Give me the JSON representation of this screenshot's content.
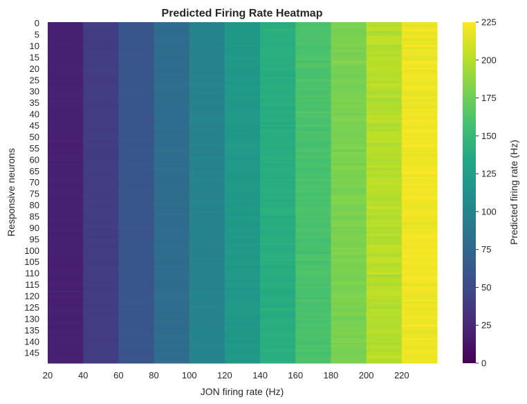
{
  "chart_data": {
    "type": "heatmap",
    "title": "Predicted Firing Rate Heatmap",
    "xlabel": "JON firing rate (Hz)",
    "ylabel": "Responsive neurons",
    "colorbar_label": "Predicted firing rate (Hz)",
    "colormap": "viridis",
    "clim": [
      0,
      225
    ],
    "x_categories": [
      20,
      40,
      60,
      80,
      100,
      120,
      140,
      160,
      180,
      200,
      220
    ],
    "x_tick_labels": [
      "20",
      "40",
      "60",
      "80",
      "100",
      "120",
      "140",
      "160",
      "180",
      "200",
      "220"
    ],
    "n_rows": 150,
    "y_tick_labels": [
      "0",
      "5",
      "10",
      "15",
      "20",
      "25",
      "30",
      "35",
      "40",
      "45",
      "50",
      "55",
      "60",
      "65",
      "70",
      "75",
      "80",
      "85",
      "90",
      "95",
      "100",
      "105",
      "110",
      "115",
      "120",
      "125",
      "130",
      "135",
      "140",
      "145"
    ],
    "column_mean_values": [
      20,
      40,
      60,
      80,
      100,
      120,
      140,
      160,
      180,
      200,
      220
    ],
    "row_noise_sd_hz": 3,
    "colorbar_ticks": [
      0,
      25,
      50,
      75,
      100,
      125,
      150,
      175,
      200,
      225
    ],
    "colorbar_tick_labels": [
      "0",
      "25",
      "50",
      "75",
      "100",
      "125",
      "150",
      "175",
      "200",
      "225"
    ]
  }
}
